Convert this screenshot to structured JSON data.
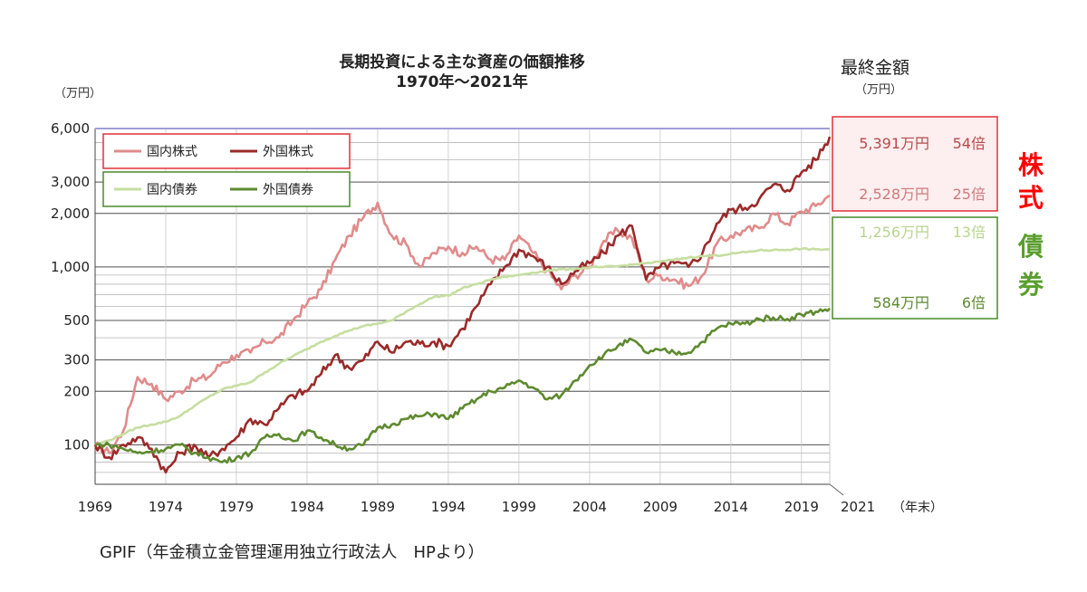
{
  "header": {
    "title": "長期投資による主な資産の価額推移",
    "subtitle": "1970年～2021年",
    "unit_left": "（万円）",
    "final_amount_label": "最終金額",
    "final_amount_unit": "（万円）"
  },
  "footer": {
    "source": "GPIF（年金積立金管理運用独立行政法人　HPより）",
    "x_suffix": "（年末）"
  },
  "colors": {
    "domestic_stocks": "#e08b8b",
    "foreign_stocks": "#9b2a2a",
    "domestic_bonds": "#c6dea0",
    "foreign_bonds": "#5e8a2f",
    "stocks_group": "#ff0000",
    "bonds_group": "#5a9e2f"
  },
  "chart_data": {
    "type": "line",
    "title": "長期投資による主な資産の価額推移",
    "subtitle": "1970年～2021年",
    "ylabel": "（万円）",
    "y_scale": "log",
    "ylim": [
      60,
      6000
    ],
    "y_ticks": [
      100,
      200,
      300,
      500,
      1000,
      2000,
      3000,
      6000
    ],
    "y_tick_labels": [
      "100",
      "200",
      "300",
      "500",
      "1,000",
      "2,000",
      "3,000",
      "6,000"
    ],
    "xlim": [
      1969,
      2021
    ],
    "x_ticks": [
      1969,
      1974,
      1979,
      1984,
      1989,
      1994,
      1999,
      2004,
      2009,
      2014,
      2019
    ],
    "x_end_label": "2021",
    "grid": true,
    "legend_position": "top-left",
    "series": [
      {
        "name": "国内株式",
        "color_key": "domestic_stocks",
        "points": [
          [
            1969,
            100
          ],
          [
            1970,
            90
          ],
          [
            1971,
            120
          ],
          [
            1972,
            240
          ],
          [
            1973,
            220
          ],
          [
            1974,
            180
          ],
          [
            1975,
            200
          ],
          [
            1976,
            230
          ],
          [
            1977,
            240
          ],
          [
            1978,
            290
          ],
          [
            1979,
            320
          ],
          [
            1980,
            330
          ],
          [
            1981,
            380
          ],
          [
            1982,
            400
          ],
          [
            1983,
            500
          ],
          [
            1984,
            620
          ],
          [
            1985,
            750
          ],
          [
            1986,
            1100
          ],
          [
            1987,
            1500
          ],
          [
            1988,
            1900
          ],
          [
            1989,
            2300
          ],
          [
            1990,
            1500
          ],
          [
            1991,
            1350
          ],
          [
            1992,
            1000
          ],
          [
            1993,
            1200
          ],
          [
            1994,
            1300
          ],
          [
            1995,
            1200
          ],
          [
            1996,
            1300
          ],
          [
            1997,
            1100
          ],
          [
            1998,
            1100
          ],
          [
            1999,
            1500
          ],
          [
            2000,
            1200
          ],
          [
            2001,
            950
          ],
          [
            2002,
            750
          ],
          [
            2003,
            900
          ],
          [
            2004,
            1000
          ],
          [
            2005,
            1400
          ],
          [
            2006,
            1600
          ],
          [
            2007,
            1450
          ],
          [
            2008,
            850
          ],
          [
            2009,
            900
          ],
          [
            2010,
            850
          ],
          [
            2011,
            780
          ],
          [
            2012,
            900
          ],
          [
            2013,
            1350
          ],
          [
            2014,
            1500
          ],
          [
            2015,
            1600
          ],
          [
            2016,
            1650
          ],
          [
            2017,
            2000
          ],
          [
            2018,
            1750
          ],
          [
            2019,
            2050
          ],
          [
            2020,
            2200
          ],
          [
            2021,
            2528
          ]
        ]
      },
      {
        "name": "外国株式",
        "color_key": "foreign_stocks",
        "points": [
          [
            1969,
            100
          ],
          [
            1970,
            85
          ],
          [
            1971,
            100
          ],
          [
            1972,
            110
          ],
          [
            1973,
            95
          ],
          [
            1974,
            70
          ],
          [
            1975,
            90
          ],
          [
            1976,
            100
          ],
          [
            1977,
            85
          ],
          [
            1978,
            95
          ],
          [
            1979,
            110
          ],
          [
            1980,
            140
          ],
          [
            1981,
            130
          ],
          [
            1982,
            160
          ],
          [
            1983,
            190
          ],
          [
            1984,
            200
          ],
          [
            1985,
            250
          ],
          [
            1986,
            320
          ],
          [
            1987,
            270
          ],
          [
            1988,
            300
          ],
          [
            1989,
            380
          ],
          [
            1990,
            330
          ],
          [
            1991,
            380
          ],
          [
            1992,
            370
          ],
          [
            1993,
            380
          ],
          [
            1994,
            360
          ],
          [
            1995,
            450
          ],
          [
            1996,
            600
          ],
          [
            1997,
            800
          ],
          [
            1998,
            1000
          ],
          [
            1999,
            1250
          ],
          [
            2000,
            1150
          ],
          [
            2001,
            1000
          ],
          [
            2002,
            800
          ],
          [
            2003,
            950
          ],
          [
            2004,
            1050
          ],
          [
            2005,
            1200
          ],
          [
            2006,
            1500
          ],
          [
            2007,
            1700
          ],
          [
            2008,
            850
          ],
          [
            2009,
            1000
          ],
          [
            2010,
            1050
          ],
          [
            2011,
            1000
          ],
          [
            2012,
            1200
          ],
          [
            2013,
            1750
          ],
          [
            2014,
            2100
          ],
          [
            2015,
            2150
          ],
          [
            2016,
            2400
          ],
          [
            2017,
            2900
          ],
          [
            2018,
            2700
          ],
          [
            2019,
            3400
          ],
          [
            2020,
            4000
          ],
          [
            2021,
            5391
          ]
        ]
      },
      {
        "name": "国内債券",
        "color_key": "domestic_bonds",
        "points": [
          [
            1969,
            100
          ],
          [
            1970,
            106
          ],
          [
            1971,
            115
          ],
          [
            1972,
            125
          ],
          [
            1973,
            130
          ],
          [
            1974,
            135
          ],
          [
            1975,
            145
          ],
          [
            1976,
            165
          ],
          [
            1977,
            185
          ],
          [
            1978,
            205
          ],
          [
            1979,
            215
          ],
          [
            1980,
            225
          ],
          [
            1981,
            255
          ],
          [
            1982,
            285
          ],
          [
            1983,
            315
          ],
          [
            1984,
            345
          ],
          [
            1985,
            380
          ],
          [
            1986,
            410
          ],
          [
            1987,
            440
          ],
          [
            1988,
            465
          ],
          [
            1989,
            480
          ],
          [
            1990,
            500
          ],
          [
            1991,
            560
          ],
          [
            1992,
            620
          ],
          [
            1993,
            680
          ],
          [
            1994,
            690
          ],
          [
            1995,
            760
          ],
          [
            1996,
            800
          ],
          [
            1997,
            850
          ],
          [
            1998,
            880
          ],
          [
            1999,
            900
          ],
          [
            2000,
            930
          ],
          [
            2001,
            950
          ],
          [
            2002,
            970
          ],
          [
            2003,
            975
          ],
          [
            2004,
            990
          ],
          [
            2005,
            1000
          ],
          [
            2006,
            1010
          ],
          [
            2007,
            1030
          ],
          [
            2008,
            1050
          ],
          [
            2009,
            1070
          ],
          [
            2010,
            1100
          ],
          [
            2011,
            1130
          ],
          [
            2012,
            1150
          ],
          [
            2013,
            1160
          ],
          [
            2014,
            1185
          ],
          [
            2015,
            1210
          ],
          [
            2016,
            1240
          ],
          [
            2017,
            1245
          ],
          [
            2018,
            1250
          ],
          [
            2019,
            1265
          ],
          [
            2020,
            1255
          ],
          [
            2021,
            1256
          ]
        ]
      },
      {
        "name": "外国債券",
        "color_key": "foreign_bonds",
        "points": [
          [
            1969,
            100
          ],
          [
            1970,
            100
          ],
          [
            1971,
            95
          ],
          [
            1972,
            90
          ],
          [
            1973,
            92
          ],
          [
            1974,
            95
          ],
          [
            1975,
            100
          ],
          [
            1976,
            90
          ],
          [
            1977,
            85
          ],
          [
            1978,
            80
          ],
          [
            1979,
            85
          ],
          [
            1980,
            90
          ],
          [
            1981,
            110
          ],
          [
            1982,
            115
          ],
          [
            1983,
            105
          ],
          [
            1984,
            120
          ],
          [
            1985,
            110
          ],
          [
            1986,
            100
          ],
          [
            1987,
            95
          ],
          [
            1988,
            100
          ],
          [
            1989,
            125
          ],
          [
            1990,
            130
          ],
          [
            1991,
            140
          ],
          [
            1992,
            145
          ],
          [
            1993,
            150
          ],
          [
            1994,
            140
          ],
          [
            1995,
            160
          ],
          [
            1996,
            180
          ],
          [
            1997,
            200
          ],
          [
            1998,
            210
          ],
          [
            1999,
            230
          ],
          [
            2000,
            210
          ],
          [
            2001,
            180
          ],
          [
            2002,
            190
          ],
          [
            2003,
            230
          ],
          [
            2004,
            280
          ],
          [
            2005,
            320
          ],
          [
            2006,
            360
          ],
          [
            2007,
            390
          ],
          [
            2008,
            330
          ],
          [
            2009,
            340
          ],
          [
            2010,
            330
          ],
          [
            2011,
            330
          ],
          [
            2012,
            380
          ],
          [
            2013,
            450
          ],
          [
            2014,
            480
          ],
          [
            2015,
            480
          ],
          [
            2016,
            510
          ],
          [
            2017,
            520
          ],
          [
            2018,
            510
          ],
          [
            2019,
            540
          ],
          [
            2020,
            560
          ],
          [
            2021,
            584
          ]
        ]
      }
    ],
    "final_values": {
      "stocks_group_label": "株式",
      "bonds_group_label": "債券",
      "items": [
        {
          "amount": "5,391万円",
          "multiple": "54倍",
          "color_key": "foreign_stocks"
        },
        {
          "amount": "2,528万円",
          "multiple": "25倍",
          "color_key": "domestic_stocks"
        },
        {
          "amount": "1,256万円",
          "multiple": "13倍",
          "color_key": "domestic_bonds"
        },
        {
          "amount": "584万円",
          "multiple": "6倍",
          "color_key": "foreign_bonds"
        }
      ]
    }
  }
}
